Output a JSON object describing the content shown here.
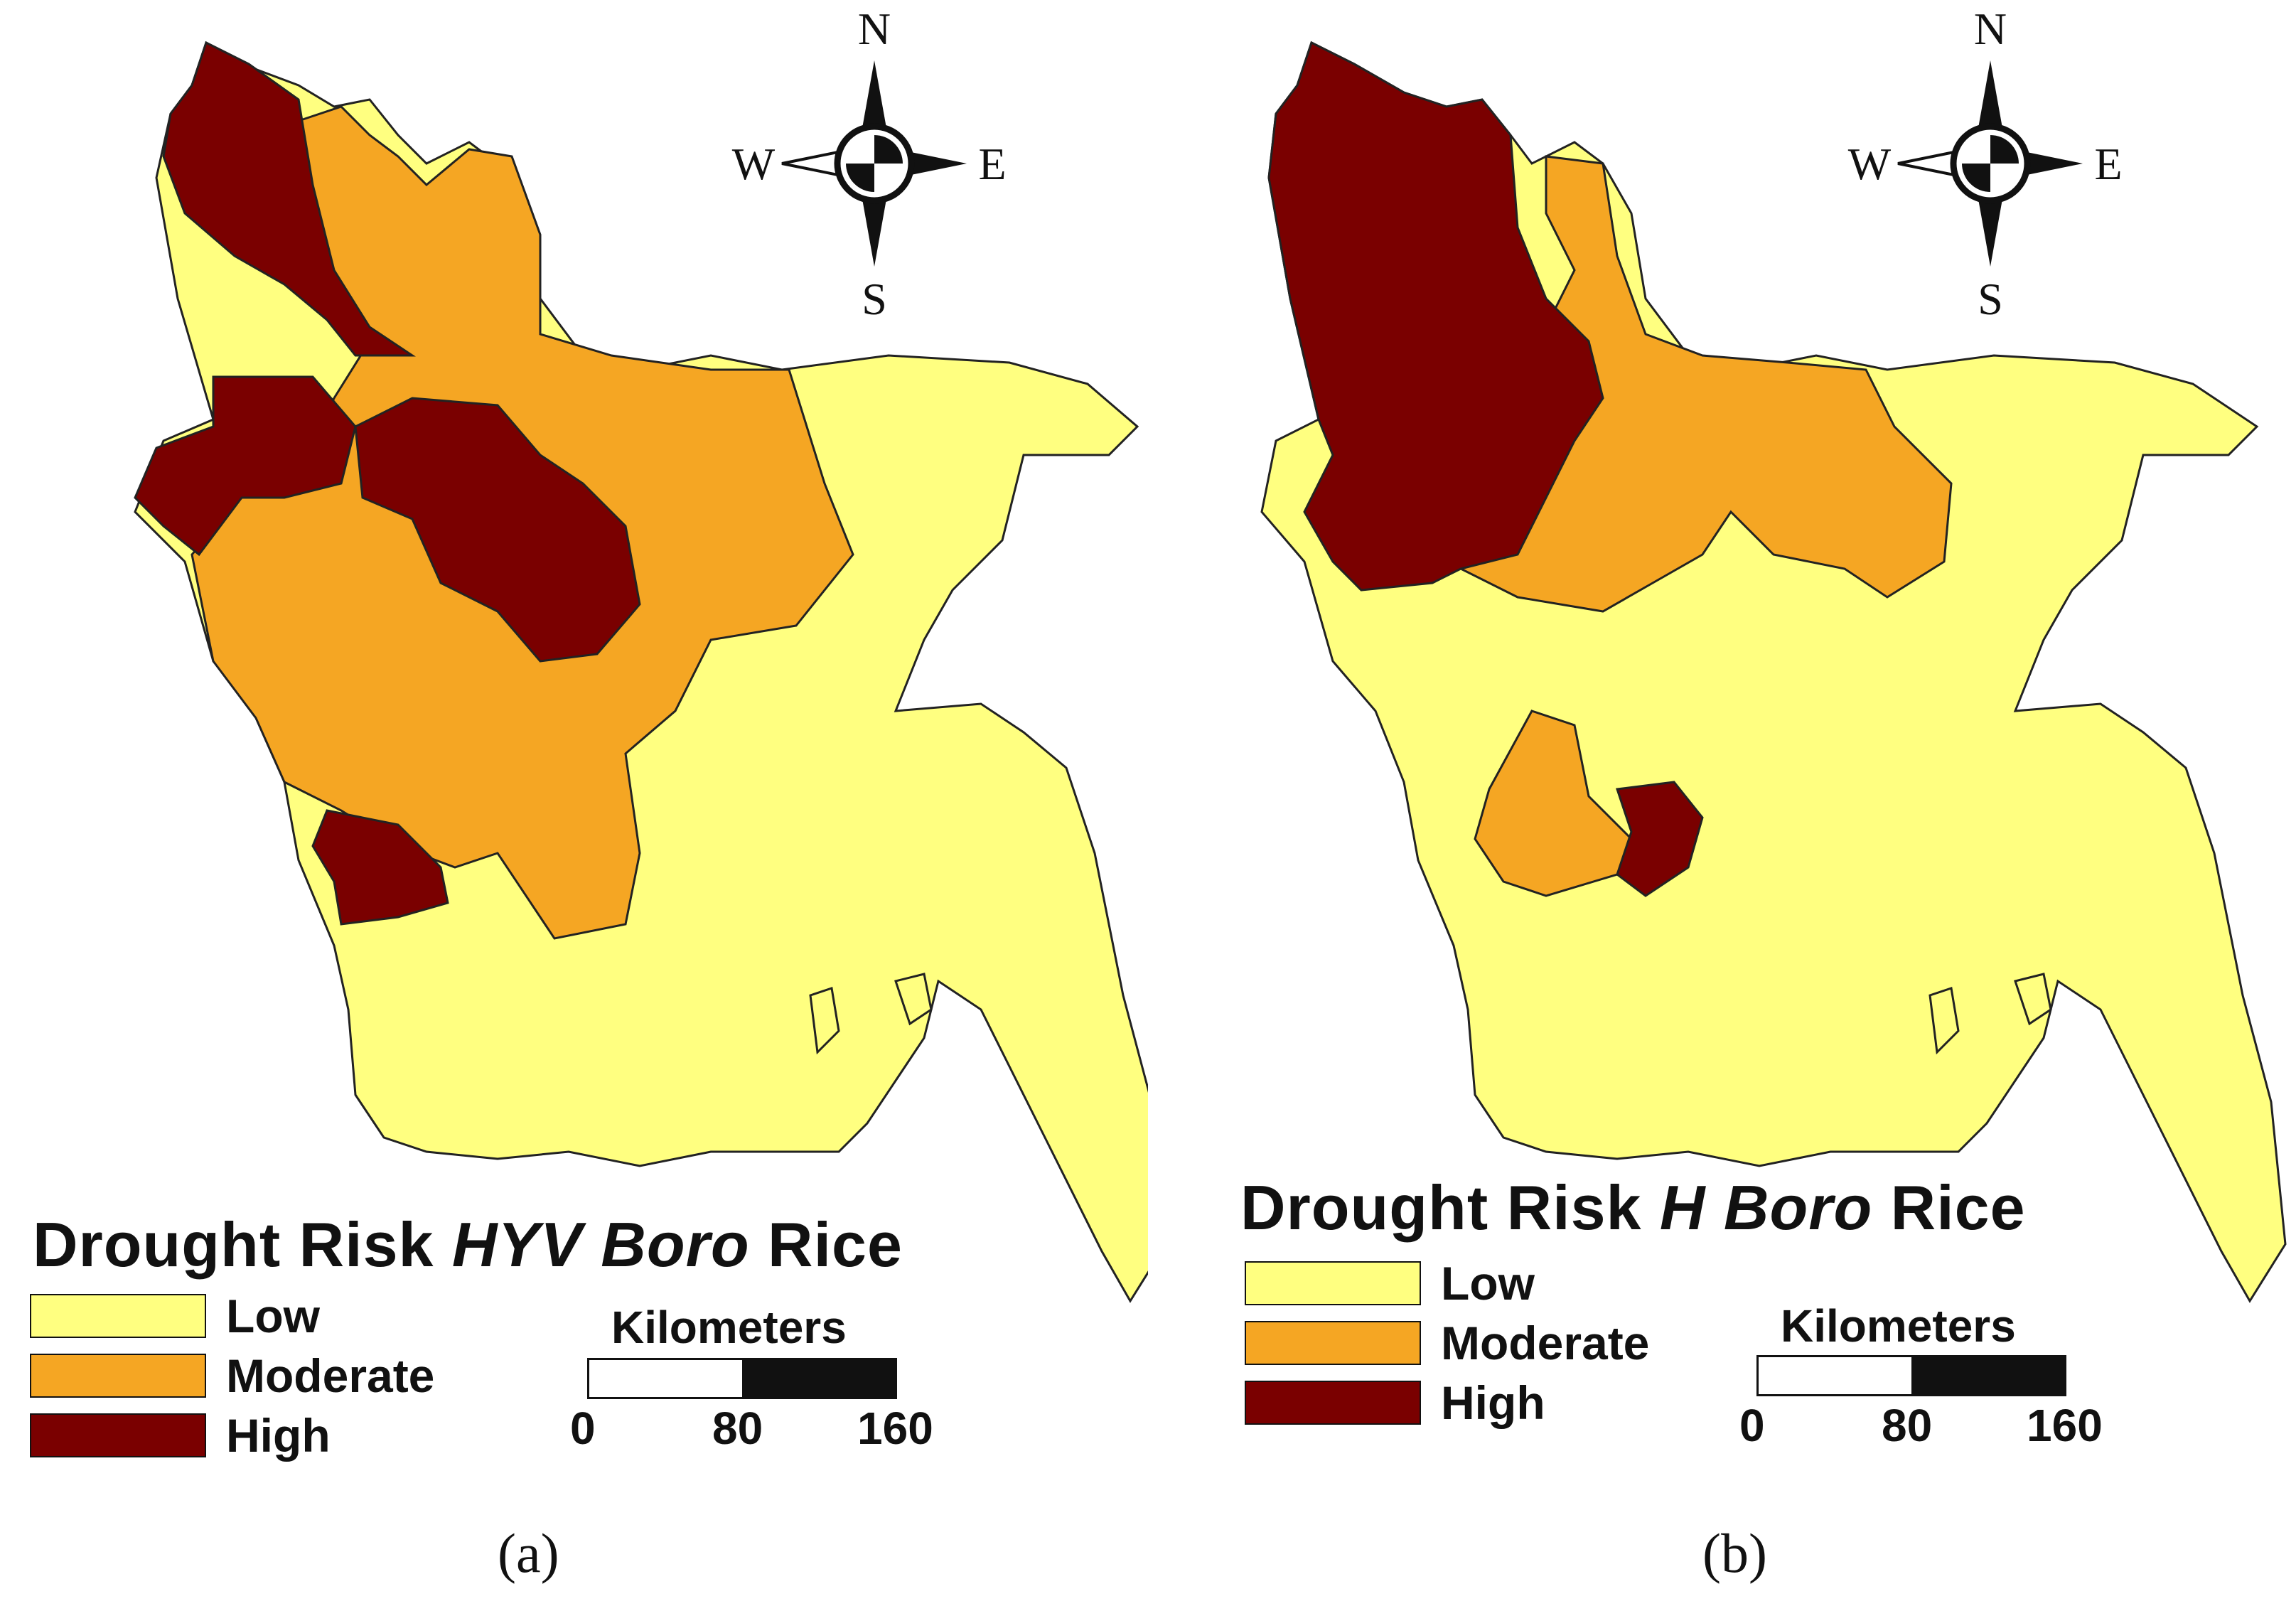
{
  "colors": {
    "low": "#ffff80",
    "moderate": "#f5a623",
    "high": "#7a0000"
  },
  "compass": {
    "north": "N",
    "south": "S",
    "east": "E",
    "west": "W"
  },
  "legend": {
    "low": "Low",
    "moderate": "Moderate",
    "high": "High"
  },
  "scale": {
    "title": "Kilometers",
    "ticks": [
      "0",
      "80",
      "160"
    ]
  },
  "panels": [
    {
      "title_prefix": "Drought Risk ",
      "title_italic": "HYV Boro",
      "title_suffix": " Rice",
      "caption": "(a)"
    },
    {
      "title_prefix": "Drought Risk ",
      "title_italic": "H Boro",
      "title_suffix": " Rice",
      "caption": "(b)"
    }
  ]
}
